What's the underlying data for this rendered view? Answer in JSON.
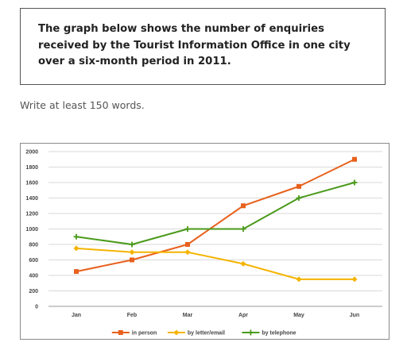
{
  "task": {
    "prompt": "The graph below shows the number of enquiries received by the Tourist Information Office in one city over a six-month period in 2011.",
    "instruction": "Write at least 150 words."
  },
  "chart_data": {
    "type": "line",
    "categories": [
      "Jan",
      "Feb",
      "Mar",
      "Apr",
      "May",
      "Jun"
    ],
    "ylim": [
      0,
      2000
    ],
    "yticks": [
      "0",
      "200",
      "400",
      "600",
      "800",
      "1000",
      "1200",
      "1400",
      "1600",
      "1800",
      "2000"
    ],
    "grid": true,
    "legend_position": "bottom",
    "series": [
      {
        "name": "in person",
        "color": "#e8601c",
        "marker": "square",
        "values": [
          450,
          600,
          800,
          1300,
          1550,
          1900
        ]
      },
      {
        "name": "by letter/email",
        "color": "#f5b400",
        "marker": "diamond",
        "values": [
          750,
          700,
          700,
          550,
          350,
          350
        ]
      },
      {
        "name": "by telephone",
        "color": "#4a9a1a",
        "marker": "cross",
        "values": [
          900,
          800,
          1000,
          1000,
          1400,
          1600
        ]
      }
    ]
  }
}
